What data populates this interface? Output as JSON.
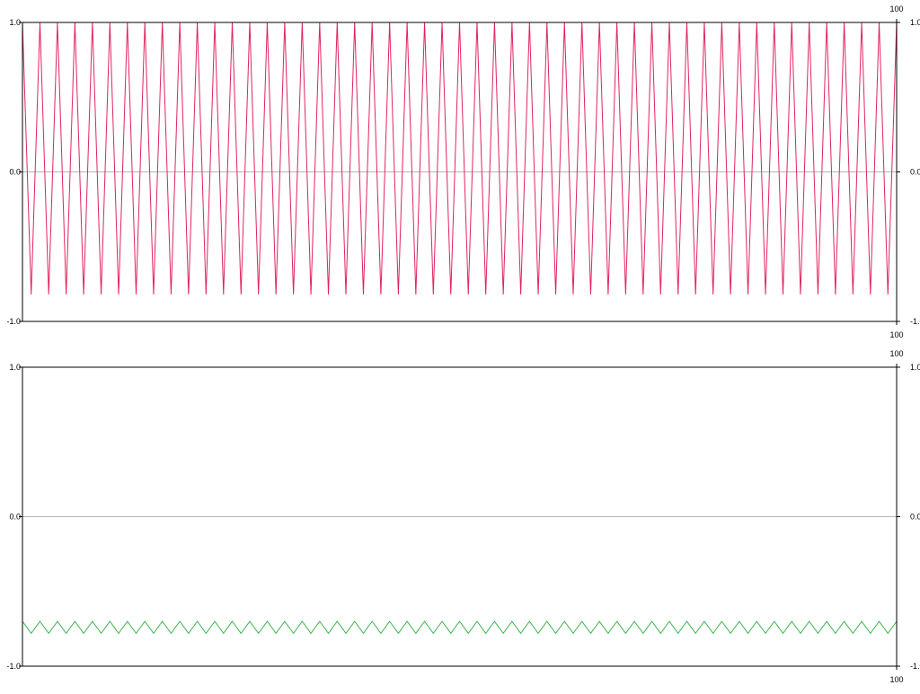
{
  "chart_data": [
    {
      "type": "line",
      "title": "",
      "xlabel": "",
      "ylabel": "",
      "xlim": [
        0,
        100
      ],
      "ylim": [
        -1.0,
        1.0
      ],
      "y_ticks": [
        "1.0",
        "0.0",
        "-1.0"
      ],
      "x_tick_labels": [
        "100",
        "100"
      ],
      "zero_line": true,
      "grid": false,
      "legend": "none",
      "series": [
        {
          "color": "#e0245e",
          "pattern": "triangle-wave",
          "cycles": 50,
          "y_max": 1.0,
          "y_min": -0.82
        }
      ]
    },
    {
      "type": "line",
      "title": "",
      "xlabel": "",
      "ylabel": "",
      "xlim": [
        0,
        100
      ],
      "ylim": [
        -1.0,
        1.0
      ],
      "y_ticks": [
        "1.0",
        "0.0",
        "-1.0"
      ],
      "x_tick_labels": [
        "100",
        "100"
      ],
      "zero_line": true,
      "grid": false,
      "legend": "none",
      "series": [
        {
          "color": "#3cb44b",
          "pattern": "triangle-wave",
          "cycles": 50,
          "y_max": -0.7,
          "y_min": -0.78
        }
      ]
    }
  ]
}
